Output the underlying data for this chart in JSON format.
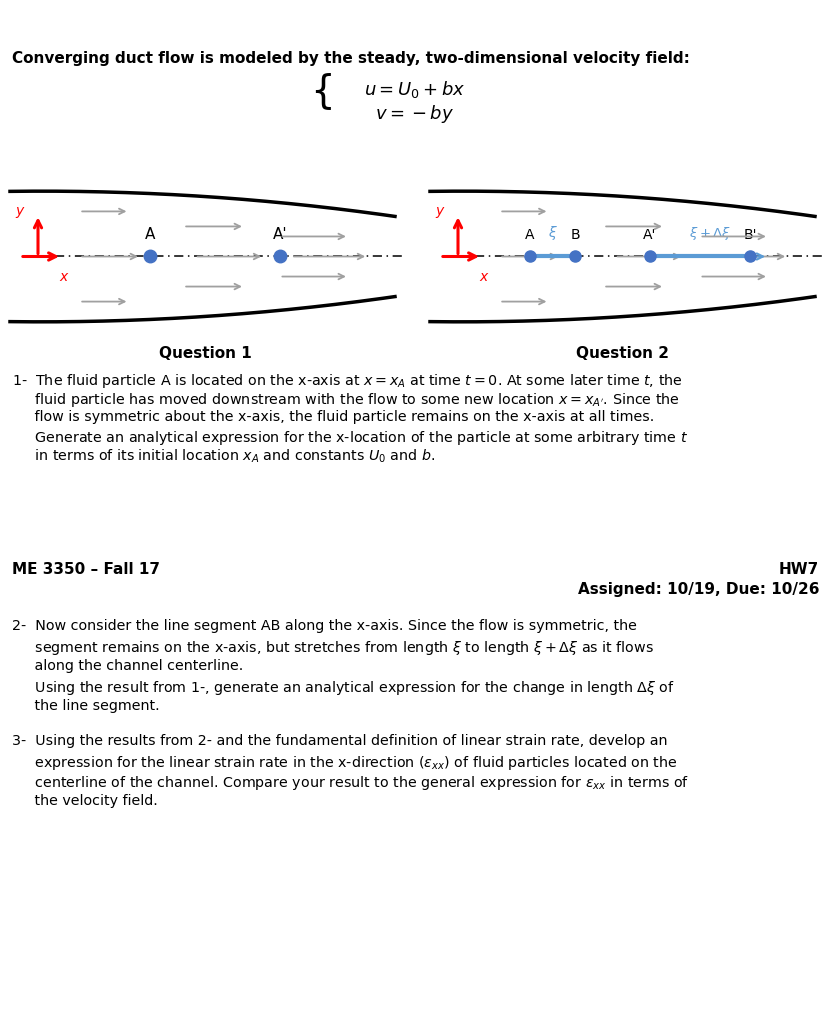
{
  "title_bar_color": "#2d2d2d",
  "bg_color": "#ffffff",
  "header_text": "Converging duct flow is modeled by the steady, two-dimensional velocity field:",
  "question1_label": "Question 1",
  "question2_label": "Question 2",
  "divider_color": "#5a5a5a",
  "course_info_left": "ME 3350 – Fall 17",
  "hw_label": "HW7",
  "assigned_text": "Assigned: 10/19, Due: 10/26",
  "red_color": "#ff0000",
  "blue_color": "#4472c4",
  "cyan_blue": "#5b9bd5",
  "arrow_gray": "#a0a0a0",
  "dot_blue": "#4472c4",
  "q1_lines": [
    "1-  The fluid particle A is located on the x-axis at $x = x_A$ at time $t = 0$. At some later time $t$, the",
    "     fluid particle has moved downstream with the flow to some new location $x = x_{A'}$. Since the",
    "     flow is symmetric about the x-axis, the fluid particle remains on the x-axis at all times.",
    "     Generate an analytical expression for the x-location of the particle at some arbitrary time $t$",
    "     in terms of its initial location $x_A$ and constants $U_0$ and $b$."
  ],
  "q2_lines": [
    "2-  Now consider the line segment AB along the x-axis. Since the flow is symmetric, the",
    "     segment remains on the x-axis, but stretches from length $\\xi$ to length $\\xi + \\Delta\\xi$ as it flows",
    "     along the channel centerline.",
    "     Using the result from 1-, generate an analytical expression for the change in length $\\Delta\\xi$ of",
    "     the line segment."
  ],
  "q3_lines": [
    "3-  Using the results from 2- and the fundamental definition of linear strain rate, develop an",
    "     expression for the linear strain rate in the x-direction ($\\varepsilon_{xx}$) of fluid particles located on the",
    "     centerline of the channel. Compare your result to the general expression for $\\varepsilon_{xx}$ in terms of",
    "     the velocity field."
  ]
}
